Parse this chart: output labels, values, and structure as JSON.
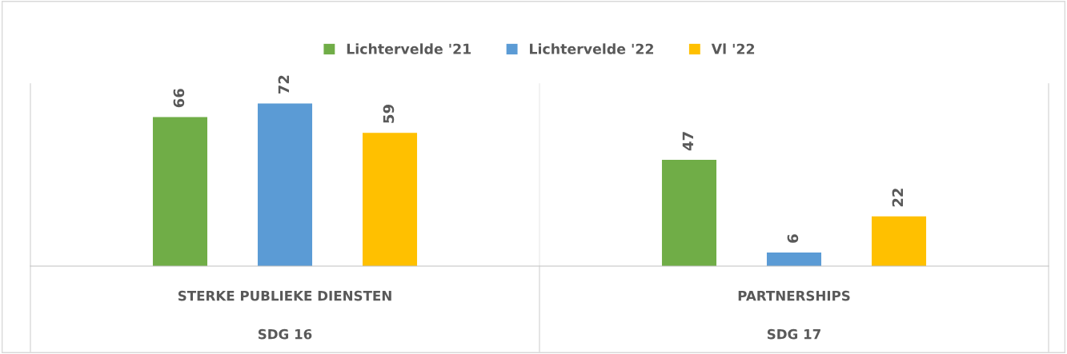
{
  "chart_data": {
    "type": "bar",
    "data_labels": true,
    "legend": "top",
    "grid": false,
    "categories": [
      "STERKE PUBLIEKE DIENSTEN",
      "PARTNERSHIPS"
    ],
    "annotations": [
      "SDG 16",
      "SDG 17"
    ],
    "series": [
      {
        "name": "Lichtervelde '21",
        "color": "#70ad47",
        "values": [
          66,
          47
        ]
      },
      {
        "name": "Lichtervelde '22",
        "color": "#5b9bd5",
        "values": [
          72,
          6
        ]
      },
      {
        "name": "Vl '22",
        "color": "#ffc000",
        "values": [
          59,
          22
        ]
      }
    ]
  }
}
